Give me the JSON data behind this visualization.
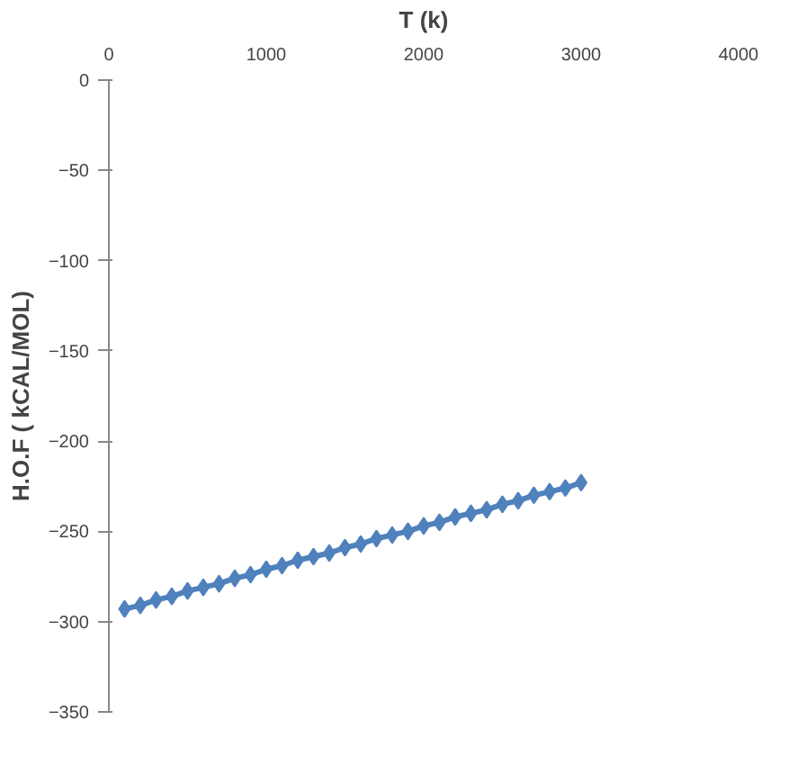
{
  "chart_data": {
    "type": "line",
    "xlabel": "T (k)",
    "ylabel": "H.O.F ( kCAL/MOL)",
    "x": [
      100,
      200,
      300,
      400,
      500,
      600,
      700,
      800,
      900,
      1000,
      1100,
      1200,
      1300,
      1400,
      1500,
      1600,
      1700,
      1800,
      1900,
      2000,
      2100,
      2200,
      2300,
      2400,
      2500,
      2600,
      2700,
      2800,
      2900,
      3000
    ],
    "series": [
      {
        "color": "#4f81bd",
        "values": [
          -293,
          -291,
          -288,
          -286,
          -283,
          -281,
          -279,
          -276,
          -274,
          -271,
          -269,
          -266,
          -264,
          -262,
          -259,
          -257,
          -254,
          -252,
          -250,
          -247,
          -245,
          -242,
          -240,
          -238,
          -235,
          -233,
          -230,
          -228,
          -226,
          -223
        ]
      }
    ],
    "xlim": [
      0,
      4000
    ],
    "xticks": [
      0,
      1000,
      2000,
      3000,
      4000
    ],
    "ylim": [
      -350,
      0
    ],
    "yticks": [
      -350,
      -300,
      -250,
      -200,
      -150,
      -100,
      -50,
      0
    ],
    "marker": "diamond",
    "grid": false
  }
}
